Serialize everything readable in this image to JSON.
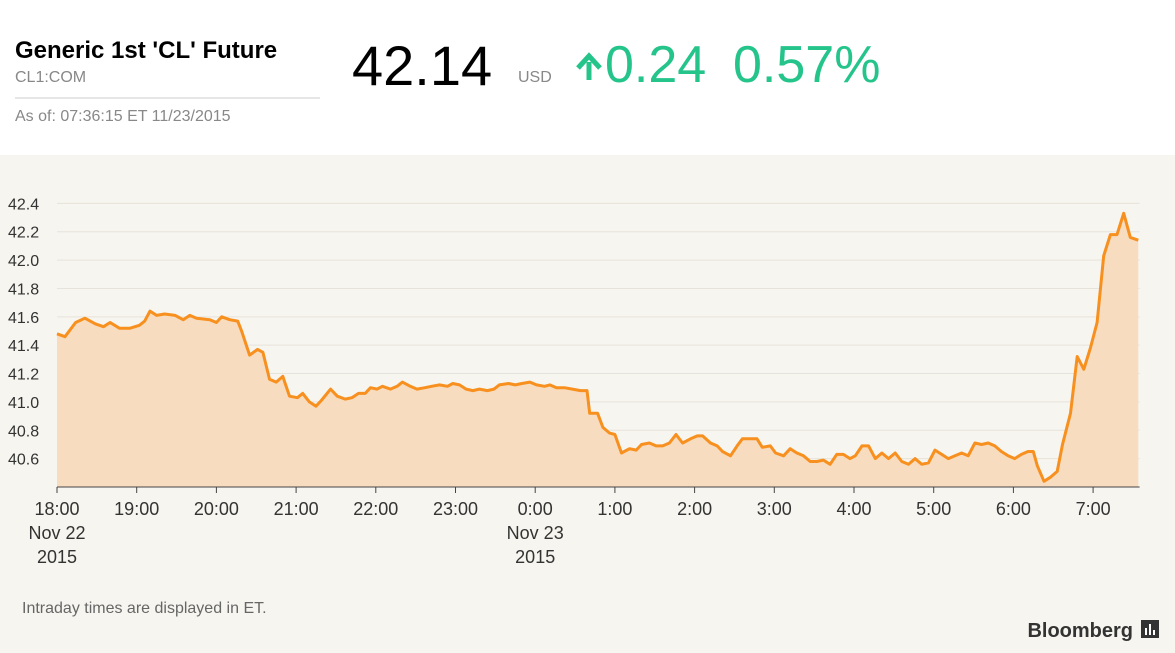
{
  "header": {
    "title": "Generic 1st 'CL' Future",
    "ticker": "CL1:COM",
    "as_of": "As of: 07:36:15 ET 11/23/2015",
    "price": 42.14,
    "currency": "USD",
    "change": 0.24,
    "change_percent": "0.57%"
  },
  "chart_data": {
    "type": "area",
    "x": [
      0,
      6,
      14,
      21,
      29,
      35,
      40,
      47,
      55,
      62,
      66,
      70,
      75,
      81,
      89,
      95,
      100,
      105,
      115,
      120,
      124,
      130,
      136,
      139,
      145,
      151,
      155,
      160,
      165,
      170,
      175,
      181,
      185,
      190,
      195,
      199,
      206,
      211,
      217,
      222,
      227,
      232,
      236,
      241,
      245,
      251,
      256,
      260,
      266,
      271,
      277,
      282,
      288,
      294,
      298,
      303,
      308,
      313,
      318,
      324,
      329,
      333,
      340,
      345,
      350,
      356,
      361,
      367,
      371,
      376,
      382,
      388,
      394,
      399,
      401,
      407,
      411,
      416,
      420,
      425,
      431,
      436,
      440,
      446,
      451,
      456,
      461,
      466,
      471,
      477,
      482,
      486,
      492,
      497,
      501,
      507,
      512,
      516,
      522,
      527,
      531,
      537,
      541,
      547,
      552,
      557,
      562,
      567,
      572,
      577,
      582,
      587,
      592,
      597,
      601,
      606,
      611,
      616,
      621,
      626,
      631,
      636,
      641,
      646,
      651,
      656,
      661,
      666,
      671,
      676,
      681,
      686,
      691,
      696,
      701,
      706,
      711,
      716,
      721,
      726,
      731,
      735,
      738,
      743,
      748,
      753,
      757,
      763,
      768,
      773,
      778,
      783,
      788,
      793,
      798,
      803,
      808,
      814
    ],
    "values": [
      41.48,
      41.46,
      41.56,
      41.59,
      41.55,
      41.53,
      41.56,
      41.52,
      41.52,
      41.54,
      41.57,
      41.64,
      41.61,
      41.62,
      41.61,
      41.58,
      41.61,
      41.59,
      41.58,
      41.56,
      41.6,
      41.58,
      41.57,
      41.5,
      41.33,
      41.37,
      41.35,
      41.16,
      41.14,
      41.18,
      41.04,
      41.03,
      41.06,
      41.0,
      40.97,
      41.01,
      41.09,
      41.04,
      41.02,
      41.03,
      41.06,
      41.06,
      41.1,
      41.09,
      41.11,
      41.09,
      41.11,
      41.14,
      41.11,
      41.09,
      41.1,
      41.11,
      41.12,
      41.11,
      41.13,
      41.12,
      41.09,
      41.08,
      41.09,
      41.08,
      41.09,
      41.12,
      41.13,
      41.12,
      41.13,
      41.14,
      41.12,
      41.11,
      41.12,
      41.1,
      41.1,
      41.09,
      41.08,
      41.08,
      40.92,
      40.92,
      40.82,
      40.78,
      40.77,
      40.64,
      40.67,
      40.66,
      40.7,
      40.71,
      40.69,
      40.69,
      40.71,
      40.77,
      40.71,
      40.74,
      40.76,
      40.76,
      40.71,
      40.69,
      40.65,
      40.62,
      40.69,
      40.74,
      40.74,
      40.74,
      40.68,
      40.69,
      40.64,
      40.62,
      40.67,
      40.64,
      40.62,
      40.58,
      40.58,
      40.59,
      40.56,
      40.63,
      40.63,
      40.6,
      40.62,
      40.69,
      40.69,
      40.6,
      40.64,
      40.6,
      40.64,
      40.58,
      40.56,
      40.6,
      40.56,
      40.57,
      40.66,
      40.63,
      40.6,
      40.62,
      40.64,
      40.62,
      40.71,
      40.7,
      40.71,
      40.69,
      40.65,
      40.62,
      40.6,
      40.63,
      40.65,
      40.65,
      40.55,
      40.44,
      40.47,
      40.51,
      40.7,
      40.92,
      41.32,
      41.23,
      41.38,
      41.56,
      42.03,
      42.18,
      42.18,
      42.33,
      42.16,
      42.14
    ],
    "color": "#f7901e",
    "fill": "#f8dcbf",
    "xlim": [
      0,
      815
    ],
    "xticks": [
      {
        "value": 0,
        "label": "18:00"
      },
      {
        "value": 60,
        "label": "19:00"
      },
      {
        "value": 120,
        "label": "20:00"
      },
      {
        "value": 180,
        "label": "21:00"
      },
      {
        "value": 240,
        "label": "22:00"
      },
      {
        "value": 300,
        "label": "23:00"
      },
      {
        "value": 360,
        "label": "0:00"
      },
      {
        "value": 420,
        "label": "1:00"
      },
      {
        "value": 480,
        "label": "2:00"
      },
      {
        "value": 540,
        "label": "3:00"
      },
      {
        "value": 600,
        "label": "4:00"
      },
      {
        "value": 660,
        "label": "5:00"
      },
      {
        "value": 720,
        "label": "6:00"
      },
      {
        "value": 780,
        "label": "7:00"
      }
    ],
    "x_date_labels": [
      {
        "value": 0,
        "label": [
          "Nov 22",
          "2015"
        ]
      },
      {
        "value": 360,
        "label": [
          "Nov 23",
          "2015"
        ]
      }
    ],
    "ylim": [
      40.4,
      42.6
    ],
    "yticks": [
      40.6,
      40.8,
      {
        "value": 41,
        "label": "41.0"
      },
      41.2,
      41.4,
      41.6,
      41.8,
      {
        "value": 42,
        "label": "42.0"
      },
      42.2,
      42.4
    ],
    "grid": true,
    "note": "Intraday times are displayed in ET.",
    "source": "Bloomberg"
  }
}
